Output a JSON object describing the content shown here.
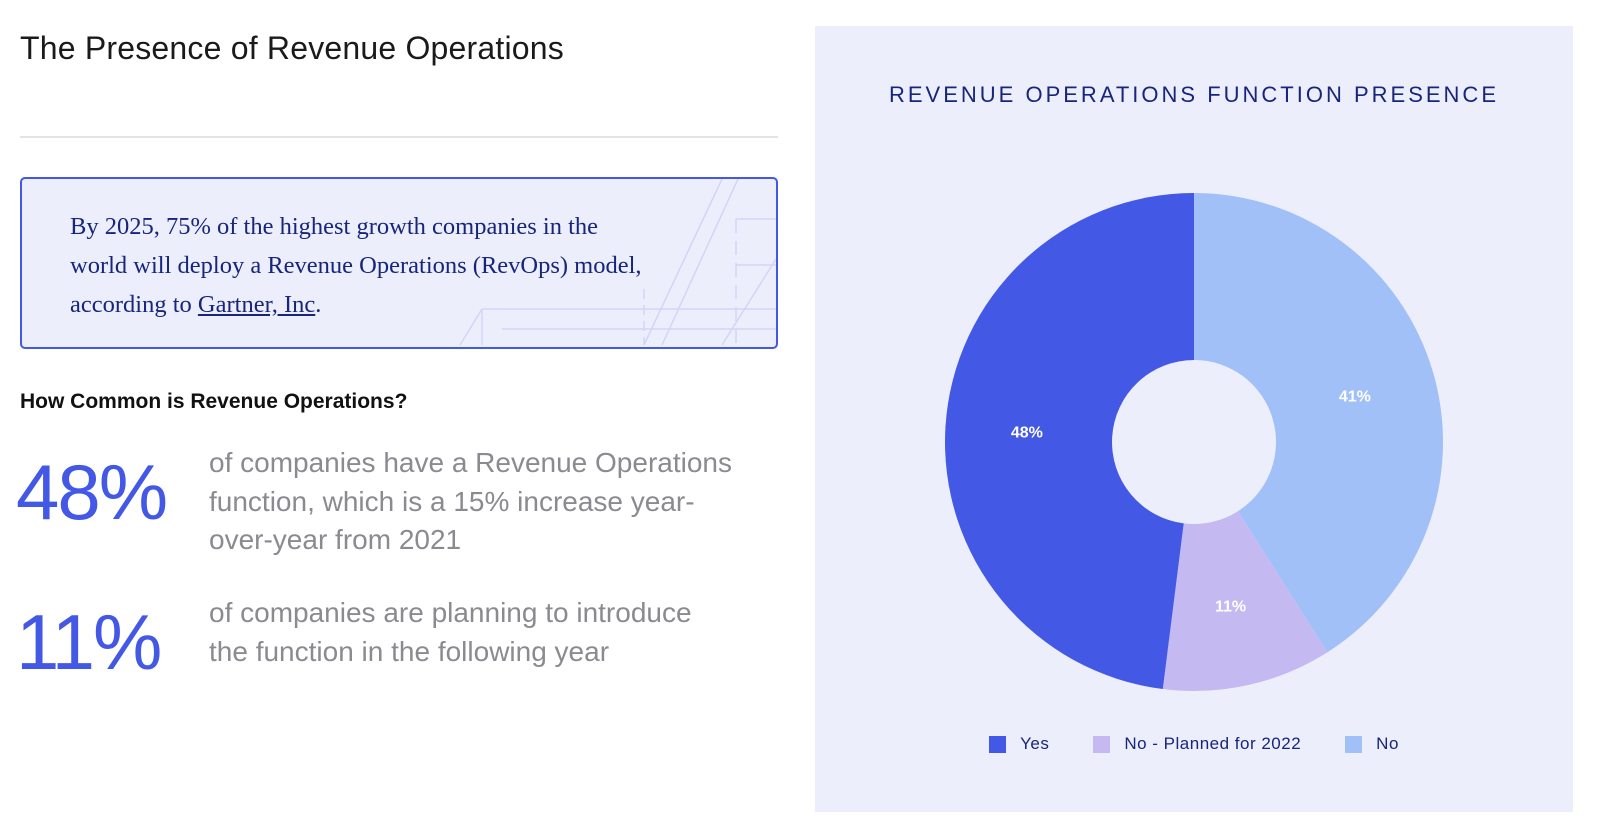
{
  "page": {
    "title": "The Presence of Revenue Operations"
  },
  "quote": {
    "line1": "By 2025, 75% of the highest growth companies in the",
    "line2": "world will deploy a Revenue Operations (RevOps) model,",
    "line3_prefix": "according to ",
    "link_text": "Gartner, Inc",
    "line3_suffix": "."
  },
  "section": {
    "heading": "How Common is Revenue Operations?"
  },
  "stats": [
    {
      "value": "48%",
      "desc_lines": [
        "of companies have a Revenue Operations",
        "function, which is a 15% increase year-",
        "over-year from 2021"
      ]
    },
    {
      "value": "11%",
      "desc_lines": [
        "of companies are planning to introduce",
        "the function in the following year"
      ]
    }
  ],
  "chart_data": {
    "type": "pie",
    "variant": "donut",
    "title": "REVENUE OPERATIONS FUNCTION PRESENCE",
    "categories": [
      "Yes",
      "No - Planned for 2022",
      "No"
    ],
    "values": [
      48,
      11,
      41
    ],
    "value_labels": [
      "48%",
      "11%",
      "41%"
    ],
    "colors": [
      "#4458e6",
      "#c4b9f1",
      "#a1c0f8"
    ],
    "legend_position": "bottom",
    "start_angle": "top, clockwise from 'No'"
  },
  "colors": {
    "accent": "#4458e6",
    "panel_bg": "#eceefc",
    "navy_text": "#17257a"
  }
}
